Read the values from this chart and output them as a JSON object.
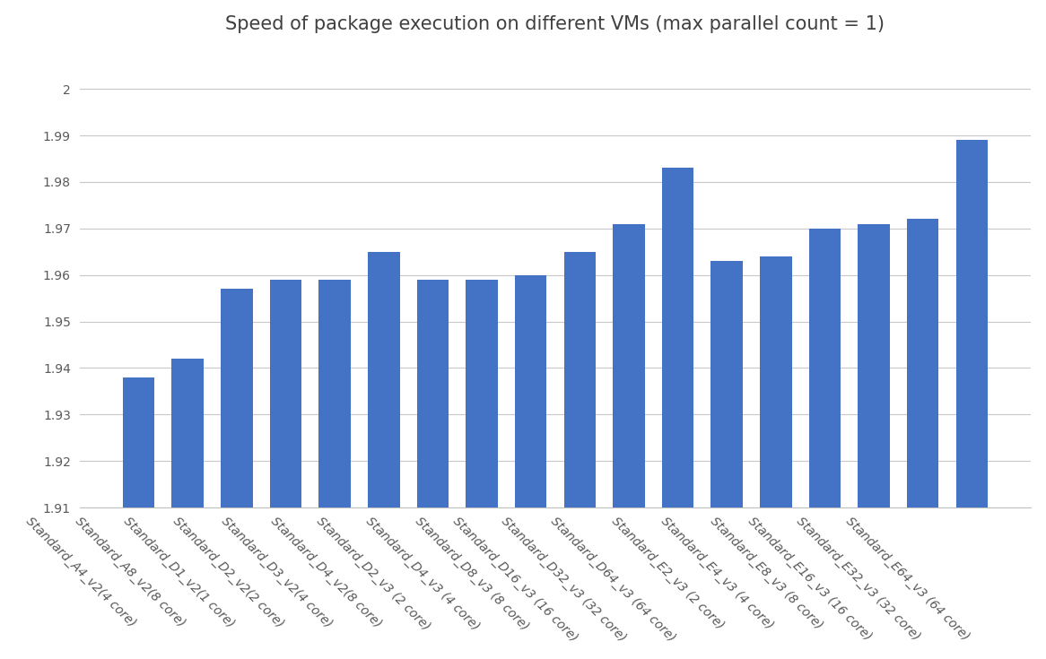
{
  "title": "Speed of package execution on different VMs (max parallel count = 1)",
  "categories": [
    "Standard_A4_v2(4 core)",
    "Standard_A8_v2(8 core)",
    "Standard_D1_v2(1 core)",
    "Standard_D2_v2(2 core)",
    "Standard_D3_v2(4 core)",
    "Standard_D4_v2(8 core)",
    "Standard_D2_v3 (2 core)",
    "Standard_D4_v3 (4 core)",
    "Standard_D8_v3 (8 core)",
    "Standard_D16_v3 (16 core)",
    "Standard_D32_v3 (32 core)",
    "Standard_D64_v3 (64 core)",
    "Standard_E2_v3 (2 core)",
    "Standard_E4_v3 (4 core)",
    "Standard_E8_v3 (8 core)",
    "Standard_E16_v3 (16 core)",
    "Standard_E32_v3 (32 core)",
    "Standard_E64_v3 (64 core)"
  ],
  "values": [
    1.938,
    1.942,
    1.957,
    1.959,
    1.959,
    1.965,
    1.959,
    1.959,
    1.96,
    1.965,
    1.971,
    1.983,
    1.963,
    1.964,
    1.97,
    1.971,
    1.972,
    1.989
  ],
  "bar_color": "#4472c4",
  "ylim_min": 1.91,
  "ylim_max": 2.008,
  "ytick_values": [
    2.0,
    1.99,
    1.98,
    1.97,
    1.96,
    1.95,
    1.94,
    1.93,
    1.92,
    1.91
  ],
  "ytick_labels": [
    "2",
    "1.99",
    "1.98",
    "1.97",
    "1.96",
    "1.95",
    "1.94",
    "1.93",
    "1.92",
    "1.91"
  ],
  "background_color": "#ffffff",
  "grid_color": "#c8c8c8",
  "title_fontsize": 15,
  "tick_fontsize": 10,
  "xlabel_rotation": 315
}
